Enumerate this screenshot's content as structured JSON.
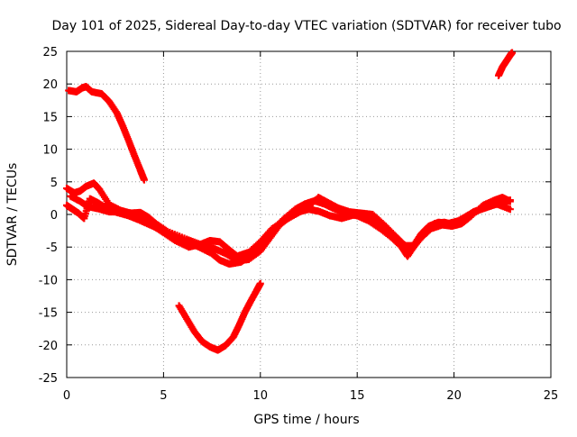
{
  "chart_data": {
    "type": "scatter",
    "title": "Day 101 of 2025, Sidereal Day-to-day VTEC variation (SDTVAR) for receiver tubo",
    "xlabel": "GPS time / hours",
    "ylabel": "SDTVAR / TECUs",
    "xlim": [
      0,
      25
    ],
    "ylim": [
      -25,
      25
    ],
    "x_ticks": [
      0,
      5,
      10,
      15,
      20,
      25
    ],
    "y_ticks": [
      -25,
      -20,
      -15,
      -10,
      -5,
      0,
      5,
      10,
      15,
      20,
      25
    ],
    "grid": true,
    "marker": "plus",
    "series_color": "#ff0000",
    "series": [
      {
        "name": "track-1",
        "points": [
          [
            0.1,
            19
          ],
          [
            0.5,
            18.8
          ],
          [
            0.8,
            19.4
          ],
          [
            1.0,
            19.6
          ],
          [
            1.3,
            18.8
          ],
          [
            1.8,
            18.5
          ],
          [
            2.2,
            17.3
          ],
          [
            2.6,
            15.5
          ],
          [
            2.9,
            13.5
          ],
          [
            3.2,
            11.3
          ],
          [
            3.5,
            9.0
          ],
          [
            3.8,
            6.8
          ],
          [
            4.0,
            5.3
          ]
        ]
      },
      {
        "name": "track-2",
        "points": [
          [
            0.0,
            4.0
          ],
          [
            0.4,
            3.3
          ],
          [
            0.7,
            3.6
          ],
          [
            1.0,
            4.3
          ],
          [
            1.4,
            4.8
          ],
          [
            1.7,
            3.8
          ],
          [
            2.2,
            1.5
          ],
          [
            2.8,
            0.6
          ],
          [
            3.3,
            0.2
          ],
          [
            3.8,
            0.3
          ],
          [
            4.2,
            -0.4
          ],
          [
            4.6,
            -1.4
          ],
          [
            5.2,
            -2.6
          ],
          [
            6.2,
            -3.8
          ],
          [
            7.0,
            -4.7
          ],
          [
            7.6,
            -5.2
          ],
          [
            8.2,
            -6.0
          ],
          [
            8.8,
            -7.1
          ],
          [
            9.4,
            -6.9
          ],
          [
            10.0,
            -5.6
          ],
          [
            10.5,
            -3.6
          ],
          [
            11.0,
            -1.6
          ],
          [
            11.5,
            -0.4
          ],
          [
            12.0,
            0.4
          ],
          [
            12.5,
            0.8
          ],
          [
            13.0,
            0.5
          ],
          [
            13.6,
            -0.2
          ],
          [
            14.2,
            -0.6
          ],
          [
            14.8,
            -0.1
          ],
          [
            15.3,
            0.1
          ],
          [
            15.8,
            -0.6
          ],
          [
            16.5,
            -2.4
          ],
          [
            17.0,
            -3.8
          ],
          [
            17.5,
            -4.8
          ],
          [
            17.9,
            -4.8
          ],
          [
            18.3,
            -3.0
          ],
          [
            18.7,
            -1.8
          ],
          [
            19.2,
            -1.2
          ],
          [
            19.7,
            -1.4
          ],
          [
            20.2,
            -1.0
          ],
          [
            20.8,
            0.0
          ],
          [
            21.4,
            0.8
          ],
          [
            22.0,
            1.4
          ],
          [
            22.5,
            1.8
          ],
          [
            22.9,
            2.2
          ]
        ]
      },
      {
        "name": "track-3",
        "points": [
          [
            0.0,
            1.4
          ],
          [
            0.3,
            0.8
          ],
          [
            0.6,
            0.2
          ],
          [
            0.9,
            -0.6
          ],
          [
            1.2,
            2.4
          ],
          [
            1.6,
            1.8
          ],
          [
            2.1,
            0.9
          ],
          [
            2.6,
            0.3
          ],
          [
            3.2,
            -0.2
          ],
          [
            3.7,
            -0.8
          ],
          [
            4.3,
            -1.6
          ],
          [
            4.9,
            -2.4
          ],
          [
            5.5,
            -3.3
          ],
          [
            6.2,
            -4.2
          ],
          [
            6.9,
            -5.1
          ],
          [
            7.5,
            -6.0
          ],
          [
            7.9,
            -7.0
          ],
          [
            8.4,
            -7.6
          ],
          [
            9.0,
            -7.3
          ],
          [
            9.5,
            -6.2
          ],
          [
            10.1,
            -4.5
          ],
          [
            10.6,
            -2.5
          ],
          [
            11.2,
            -0.7
          ],
          [
            11.8,
            0.8
          ],
          [
            12.3,
            1.6
          ],
          [
            12.8,
            2.1
          ],
          [
            13.3,
            1.6
          ],
          [
            13.8,
            0.9
          ],
          [
            14.4,
            0.1
          ],
          [
            15.0,
            -0.2
          ],
          [
            15.6,
            -1.0
          ],
          [
            16.2,
            -2.2
          ],
          [
            16.8,
            -3.6
          ],
          [
            17.3,
            -5.0
          ],
          [
            17.6,
            -6.4
          ],
          [
            18.0,
            -4.6
          ],
          [
            18.5,
            -2.6
          ],
          [
            19.0,
            -1.4
          ],
          [
            19.5,
            -1.2
          ],
          [
            20.0,
            -1.6
          ],
          [
            20.5,
            -0.6
          ],
          [
            21.0,
            0.4
          ],
          [
            21.6,
            1.0
          ],
          [
            22.2,
            1.6
          ],
          [
            22.9,
            0.8
          ]
        ]
      },
      {
        "name": "track-4",
        "points": [
          [
            0.2,
            2.8
          ],
          [
            0.7,
            2.0
          ],
          [
            1.1,
            1.2
          ],
          [
            1.6,
            0.9
          ],
          [
            2.2,
            0.4
          ],
          [
            2.8,
            0.4
          ],
          [
            3.4,
            0.2
          ],
          [
            4.0,
            -0.8
          ],
          [
            4.5,
            -1.8
          ],
          [
            5.0,
            -2.8
          ],
          [
            5.6,
            -4.0
          ],
          [
            6.3,
            -5.0
          ],
          [
            6.9,
            -4.6
          ],
          [
            7.4,
            -4.0
          ],
          [
            7.9,
            -4.2
          ],
          [
            8.3,
            -5.2
          ],
          [
            8.8,
            -6.4
          ],
          [
            9.4,
            -5.8
          ],
          [
            10.0,
            -4.2
          ],
          [
            10.6,
            -2.2
          ],
          [
            11.2,
            -1.0
          ],
          [
            11.8,
            0.0
          ],
          [
            12.4,
            1.0
          ],
          [
            13.0,
            2.6
          ],
          [
            13.5,
            1.8
          ],
          [
            14.0,
            1.0
          ],
          [
            14.6,
            0.4
          ],
          [
            15.2,
            0.2
          ],
          [
            15.8,
            0.0
          ],
          [
            16.4,
            -1.6
          ],
          [
            17.0,
            -3.4
          ],
          [
            17.4,
            -4.6
          ],
          [
            17.8,
            -5.4
          ],
          [
            18.3,
            -3.6
          ],
          [
            18.8,
            -2.2
          ],
          [
            19.4,
            -1.6
          ],
          [
            19.9,
            -1.8
          ],
          [
            20.4,
            -1.4
          ],
          [
            20.9,
            -0.2
          ],
          [
            21.5,
            1.4
          ],
          [
            22.1,
            2.2
          ],
          [
            22.5,
            2.6
          ],
          [
            22.9,
            2.0
          ]
        ]
      },
      {
        "name": "track-5",
        "points": [
          [
            5.8,
            -14.0
          ],
          [
            6.2,
            -16.0
          ],
          [
            6.6,
            -18.0
          ],
          [
            7.0,
            -19.5
          ],
          [
            7.4,
            -20.3
          ],
          [
            7.8,
            -20.8
          ],
          [
            8.2,
            -20.1
          ],
          [
            8.6,
            -18.8
          ],
          [
            8.9,
            -17.0
          ],
          [
            9.2,
            -15.0
          ],
          [
            9.5,
            -13.3
          ],
          [
            9.8,
            -11.7
          ],
          [
            10.0,
            -10.6
          ]
        ]
      },
      {
        "name": "track-6",
        "points": [
          [
            22.3,
            21.3
          ],
          [
            22.5,
            22.6
          ],
          [
            22.7,
            23.5
          ],
          [
            22.9,
            24.4
          ],
          [
            23.0,
            24.8
          ]
        ]
      }
    ]
  }
}
